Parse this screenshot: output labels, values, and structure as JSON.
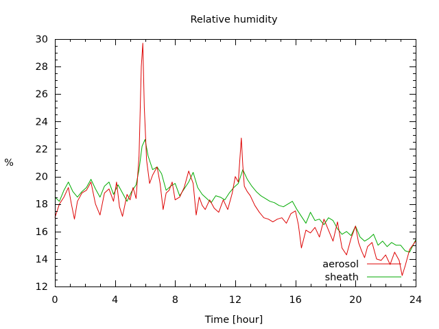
{
  "chart_data": {
    "type": "line",
    "title": "Relative humidity",
    "xlabel": "Time [hour]",
    "ylabel": "%",
    "xlim": [
      0,
      24
    ],
    "ylim": [
      12,
      30
    ],
    "xticks": [
      0,
      4,
      8,
      12,
      16,
      20,
      24
    ],
    "yticks": [
      12,
      14,
      16,
      18,
      20,
      22,
      24,
      26,
      28,
      30
    ],
    "grid": false,
    "legend_position": "bottom-right",
    "series": [
      {
        "name": "aerosol",
        "color": "#dd0000",
        "x": [
          0,
          0.3,
          0.6,
          0.9,
          1.1,
          1.3,
          1.5,
          1.8,
          2.1,
          2.4,
          2.7,
          3.0,
          3.3,
          3.6,
          3.9,
          4.1,
          4.3,
          4.5,
          4.8,
          5.0,
          5.2,
          5.4,
          5.6,
          5.75,
          5.85,
          5.95,
          6.1,
          6.3,
          6.5,
          6.8,
          7.0,
          7.2,
          7.4,
          7.6,
          7.8,
          8.0,
          8.3,
          8.6,
          8.9,
          9.2,
          9.4,
          9.6,
          9.8,
          10.0,
          10.3,
          10.6,
          10.9,
          11.2,
          11.5,
          11.8,
          12.0,
          12.2,
          12.4,
          12.5,
          12.6,
          12.8,
          13.0,
          13.3,
          13.6,
          13.9,
          14.2,
          14.5,
          14.8,
          15.1,
          15.4,
          15.7,
          16.0,
          16.2,
          16.4,
          16.7,
          17.0,
          17.3,
          17.6,
          17.9,
          18.2,
          18.5,
          18.8,
          19.1,
          19.4,
          19.7,
          20.0,
          20.2,
          20.4,
          20.6,
          20.8,
          21.1,
          21.4,
          21.7,
          22.0,
          22.3,
          22.6,
          22.9,
          23.1,
          23.3,
          23.6,
          24.0
        ],
        "y": [
          17.0,
          18.0,
          18.5,
          19.2,
          18.0,
          16.9,
          18.2,
          18.8,
          19.0,
          19.6,
          18.0,
          17.2,
          18.8,
          19.1,
          18.2,
          19.6,
          17.8,
          17.1,
          18.7,
          18.3,
          19.2,
          18.4,
          21.5,
          28.0,
          29.7,
          25.0,
          21.2,
          19.5,
          20.1,
          20.7,
          19.5,
          17.6,
          18.8,
          19.0,
          19.6,
          18.3,
          18.5,
          19.2,
          20.4,
          19.5,
          17.2,
          18.5,
          17.9,
          17.6,
          18.3,
          17.7,
          17.4,
          18.3,
          17.6,
          18.8,
          20.0,
          19.6,
          22.8,
          20.8,
          19.3,
          18.9,
          18.6,
          17.9,
          17.4,
          17.0,
          16.9,
          16.7,
          16.9,
          17.0,
          16.6,
          17.3,
          17.5,
          16.5,
          14.8,
          16.1,
          15.9,
          16.3,
          15.6,
          16.9,
          16.1,
          15.3,
          16.7,
          14.8,
          14.3,
          15.5,
          16.4,
          15.2,
          14.6,
          14.1,
          14.9,
          15.2,
          14.0,
          13.9,
          14.3,
          13.6,
          14.5,
          13.9,
          12.8,
          13.5,
          14.7,
          15.3
        ]
      },
      {
        "name": "sheath",
        "color": "#00aa00",
        "x": [
          0,
          0.3,
          0.6,
          0.9,
          1.2,
          1.5,
          1.8,
          2.1,
          2.4,
          2.7,
          3.0,
          3.3,
          3.6,
          3.9,
          4.2,
          4.5,
          4.8,
          5.1,
          5.4,
          5.6,
          5.8,
          6.0,
          6.2,
          6.5,
          6.8,
          7.1,
          7.4,
          7.7,
          8.0,
          8.3,
          8.6,
          8.9,
          9.2,
          9.5,
          9.8,
          10.1,
          10.4,
          10.7,
          11.0,
          11.3,
          11.6,
          11.9,
          12.2,
          12.5,
          12.8,
          13.1,
          13.4,
          13.7,
          14.0,
          14.3,
          14.6,
          14.9,
          15.2,
          15.5,
          15.8,
          16.1,
          16.4,
          16.7,
          17.0,
          17.3,
          17.6,
          17.9,
          18.2,
          18.5,
          18.8,
          19.1,
          19.4,
          19.7,
          20.0,
          20.3,
          20.6,
          20.9,
          21.2,
          21.5,
          21.8,
          22.1,
          22.4,
          22.7,
          23.0,
          23.3,
          23.6,
          24.0
        ],
        "y": [
          18.5,
          18.2,
          19.0,
          19.6,
          18.9,
          18.5,
          18.9,
          19.2,
          19.8,
          19.1,
          18.5,
          19.3,
          19.6,
          18.7,
          19.4,
          18.8,
          18.2,
          18.9,
          19.4,
          20.5,
          22.2,
          22.7,
          21.5,
          20.5,
          20.7,
          20.2,
          19.0,
          19.3,
          19.5,
          18.6,
          19.1,
          19.6,
          20.3,
          19.2,
          18.7,
          18.4,
          18.1,
          18.6,
          18.5,
          18.3,
          18.8,
          19.2,
          19.5,
          20.5,
          19.8,
          19.3,
          18.9,
          18.6,
          18.4,
          18.2,
          18.1,
          17.9,
          17.8,
          18.0,
          18.2,
          17.6,
          17.1,
          16.6,
          17.4,
          16.8,
          16.9,
          16.5,
          17.0,
          16.8,
          16.2,
          15.8,
          16.0,
          15.7,
          16.4,
          15.6,
          15.3,
          15.5,
          15.8,
          15.0,
          15.3,
          14.9,
          15.2,
          15.0,
          15.0,
          14.6,
          14.5,
          15.4
        ]
      }
    ]
  }
}
